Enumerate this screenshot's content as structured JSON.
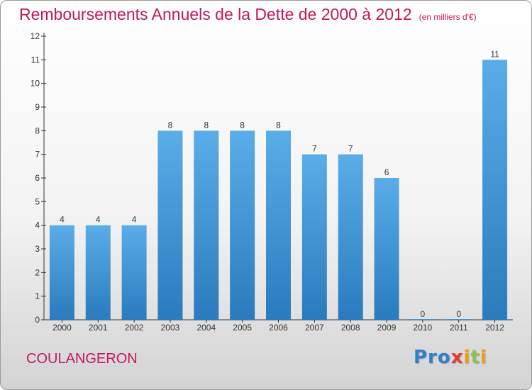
{
  "header": {
    "title": "Remboursements Annuels de la Dette de 2000 à 2012",
    "unit": "(en milliers d'€)"
  },
  "footer": {
    "city": "COULANGERON",
    "logo": "Proxiti"
  },
  "colors": {
    "title": "#c2185b",
    "bar_top": "#5aade8",
    "bar_bottom": "#2a7bbd"
  },
  "chart_data": {
    "type": "bar",
    "categories": [
      "2000",
      "2001",
      "2002",
      "2003",
      "2004",
      "2005",
      "2006",
      "2007",
      "2008",
      "2009",
      "2010",
      "2011",
      "2012"
    ],
    "values": [
      4,
      4,
      4,
      8,
      8,
      8,
      8,
      7,
      7,
      6,
      0,
      0,
      11
    ],
    "ylim": [
      0,
      12
    ],
    "yticks": [
      0,
      1,
      2,
      3,
      4,
      5,
      6,
      7,
      8,
      9,
      10,
      11,
      12
    ],
    "grid": false,
    "xlabel": "",
    "ylabel": ""
  }
}
